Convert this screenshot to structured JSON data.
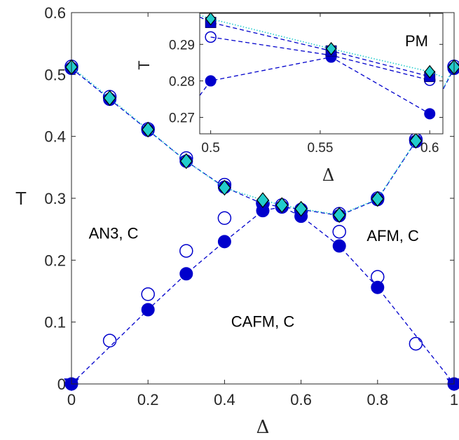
{
  "chart_data": [
    {
      "type": "scatter",
      "xlabel": "Δ",
      "ylabel": "T",
      "xlim": [
        0,
        1
      ],
      "ylim": [
        0,
        0.6
      ],
      "xticks": [
        "0",
        "0.2",
        "0.4",
        "0.6",
        "0.8",
        "1"
      ],
      "yticks": [
        "0",
        "0.1",
        "0.2",
        "0.3",
        "0.4",
        "0.5",
        "0.6"
      ],
      "grid": false,
      "annotations": [
        "PM",
        "AN3, C",
        "AFM, C",
        "CAFM, C"
      ],
      "series": [
        {
          "style": "dashed line with filled circles",
          "color": "#0000cc",
          "x": [
            0,
            0.1,
            0.2,
            0.3,
            0.4,
            0.5,
            0.55,
            0.6,
            0.7,
            0.8,
            0.9,
            1
          ],
          "y": [
            0.51,
            0.46,
            0.41,
            0.36,
            0.318,
            0.291,
            0.286,
            0.282,
            0.272,
            0.298,
            0.392,
            0.51
          ]
        },
        {
          "style": "open circles",
          "color": "#0000cc",
          "x": [
            0,
            0.1,
            0.2,
            0.3,
            0.4,
            0.5,
            0.55,
            0.6,
            0.7,
            0.8,
            0.9,
            1
          ],
          "y": [
            0.513,
            0.464,
            0.412,
            0.365,
            0.322,
            0.292,
            0.289,
            0.28,
            0.275,
            0.3,
            0.395,
            0.513
          ]
        },
        {
          "style": "open circles",
          "color": "#0000cc",
          "x": [
            0.1,
            0.2,
            0.3,
            0.4,
            0.5,
            0.6,
            0.7,
            0.8,
            0.9
          ],
          "y": [
            0.07,
            0.145,
            0.215,
            0.268,
            0.292,
            0.28,
            0.246,
            0.173,
            0.065
          ]
        },
        {
          "style": "dashed line with filled circles",
          "color": "#0000cc",
          "x": [
            0,
            0.2,
            0.3,
            0.4,
            0.5,
            0.55,
            0.6,
            0.7,
            0.8,
            1
          ],
          "y": [
            0,
            0.12,
            0.178,
            0.23,
            0.28,
            0.286,
            0.271,
            0.223,
            0.156,
            0
          ]
        },
        {
          "style": "dotted line with diamonds",
          "color": "#22cccc",
          "x": [
            0,
            0.1,
            0.2,
            0.3,
            0.4,
            0.5,
            0.55,
            0.6,
            0.7,
            0.8,
            0.9,
            1
          ],
          "y": [
            0.512,
            0.462,
            0.411,
            0.36,
            0.317,
            0.297,
            0.289,
            0.283,
            0.273,
            0.299,
            0.393,
            0.512
          ]
        },
        {
          "style": "filled triangles",
          "color": "#0000cc",
          "x": [
            0,
            1
          ],
          "y": [
            0,
            0
          ]
        }
      ]
    },
    {
      "type": "scatter",
      "xlabel": "Δ",
      "ylabel": "T",
      "xlim": [
        0.495,
        0.606
      ],
      "ylim": [
        0.2655,
        0.2985
      ],
      "xticks": [
        "0.5",
        "0.55",
        "0.6"
      ],
      "yticks": [
        "0.27",
        "0.28",
        "0.29"
      ],
      "grid": false,
      "series": [
        {
          "style": "dashed line with filled circles",
          "color": "#0000cc",
          "x": [
            0.5,
            0.555,
            0.6
          ],
          "y": [
            0.28,
            0.2865,
            0.271
          ],
          "line_from": [
            0.495,
            0.276
          ]
        },
        {
          "style": "dashed line with open circles",
          "color": "#0000cc",
          "x": [
            0.5,
            0.555,
            0.6
          ],
          "y": [
            0.292,
            0.287,
            0.2802
          ]
        },
        {
          "style": "dashed line with filled squares",
          "color": "#0000cc",
          "x": [
            0.5,
            0.555,
            0.6
          ],
          "y": [
            0.296,
            0.2882,
            0.2812
          ],
          "line_from": [
            0.495,
            0.2975
          ]
        },
        {
          "style": "dotted line with diamonds",
          "color": "#22cccc",
          "x": [
            0.5,
            0.555,
            0.6
          ],
          "y": [
            0.297,
            0.2888,
            0.2825
          ],
          "line_from": [
            0.495,
            0.298
          ],
          "line_to": [
            0.606,
            0.281
          ]
        }
      ]
    }
  ]
}
